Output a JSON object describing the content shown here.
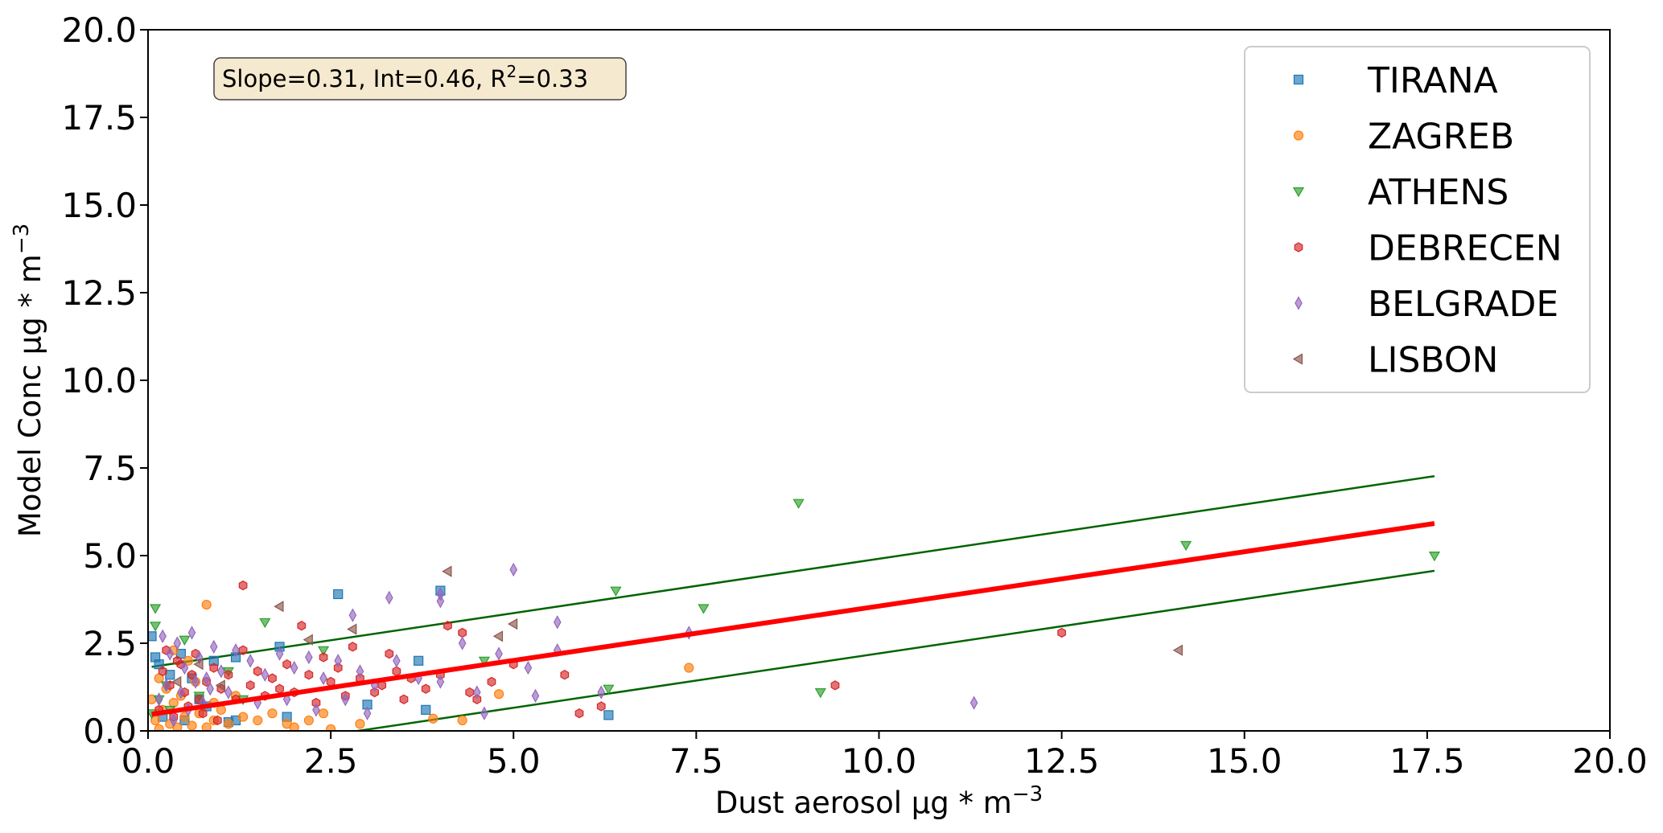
{
  "chart_data": {
    "type": "scatter",
    "xlabel": "Dust aerosol µg * m",
    "xlabel_exp": "−3",
    "ylabel": "Model Conc µg * m",
    "ylabel_exp": "−3",
    "xlim": [
      0,
      20
    ],
    "ylim": [
      0,
      20
    ],
    "xticks": [
      "0.0",
      "2.5",
      "5.0",
      "7.5",
      "10.0",
      "12.5",
      "15.0",
      "17.5",
      "20.0"
    ],
    "yticks": [
      "0.0",
      "2.5",
      "5.0",
      "7.5",
      "10.0",
      "12.5",
      "15.0",
      "17.5",
      "20.0"
    ],
    "grid": false,
    "legend_position": "top-right",
    "annotation": {
      "prefix": "Slope=0.31, Int=0.46, R",
      "sup": "2",
      "suffix": "=0.33",
      "background": "#f5e9cf"
    },
    "regression": {
      "slope": 0.31,
      "intercept": 0.46,
      "x_range": [
        0.05,
        17.6
      ],
      "color": "#ff0000",
      "band": 1.35,
      "band_color": "#006400"
    },
    "series": [
      {
        "name": "TIRANA",
        "marker": "square",
        "color": "#1f77b4",
        "points": [
          [
            0.05,
            2.7
          ],
          [
            0.1,
            2.1
          ],
          [
            0.15,
            1.9
          ],
          [
            0.3,
            1.6
          ],
          [
            0.45,
            2.2
          ],
          [
            0.6,
            1.5
          ],
          [
            0.8,
            0.7
          ],
          [
            1.2,
            0.3
          ],
          [
            0.9,
            2.0
          ],
          [
            1.8,
            2.4
          ],
          [
            1.2,
            2.1
          ],
          [
            2.6,
            3.9
          ],
          [
            4.0,
            4.0
          ],
          [
            3.7,
            2.0
          ],
          [
            3.0,
            0.75
          ],
          [
            3.8,
            0.6
          ],
          [
            6.3,
            0.45
          ],
          [
            1.9,
            0.4
          ],
          [
            1.1,
            0.25
          ],
          [
            0.2,
            0.4
          ],
          [
            0.5,
            0.3
          ],
          [
            0.7,
            0.9
          ]
        ]
      },
      {
        "name": "ZAGREB",
        "marker": "circle",
        "color": "#ff7f0e",
        "points": [
          [
            0.8,
            3.6
          ],
          [
            0.05,
            0.9
          ],
          [
            0.1,
            0.3
          ],
          [
            0.15,
            0.05
          ],
          [
            0.2,
            0.6
          ],
          [
            0.3,
            0.2
          ],
          [
            0.35,
            0.8
          ],
          [
            0.4,
            0.1
          ],
          [
            0.5,
            0.4
          ],
          [
            0.6,
            0.15
          ],
          [
            0.7,
            0.5
          ],
          [
            0.8,
            0.1
          ],
          [
            0.9,
            0.3
          ],
          [
            1.0,
            0.6
          ],
          [
            1.1,
            0.2
          ],
          [
            1.3,
            0.4
          ],
          [
            1.5,
            0.3
          ],
          [
            1.7,
            0.5
          ],
          [
            1.9,
            0.2
          ],
          [
            2.0,
            0.1
          ],
          [
            2.2,
            0.3
          ],
          [
            2.4,
            0.5
          ],
          [
            2.5,
            0.05
          ],
          [
            2.9,
            0.2
          ],
          [
            3.9,
            0.35
          ],
          [
            4.3,
            0.3
          ],
          [
            4.8,
            1.05
          ],
          [
            7.4,
            1.8
          ],
          [
            0.25,
            1.2
          ],
          [
            0.45,
            1.0
          ],
          [
            0.55,
            2.0
          ],
          [
            0.65,
            1.4
          ],
          [
            0.35,
            2.3
          ],
          [
            0.15,
            1.5
          ],
          [
            1.2,
            1.0
          ],
          [
            0.9,
            0.8
          ]
        ]
      },
      {
        "name": "ATHENS",
        "marker": "triangle_down",
        "color": "#2ca02c",
        "points": [
          [
            0.1,
            3.5
          ],
          [
            0.1,
            3.0
          ],
          [
            1.6,
            3.1
          ],
          [
            0.25,
            1.3
          ],
          [
            0.05,
            0.5
          ],
          [
            0.15,
            0.9
          ],
          [
            2.4,
            2.3
          ],
          [
            4.6,
            2.0
          ],
          [
            6.3,
            1.2
          ],
          [
            6.4,
            4.0
          ],
          [
            7.6,
            3.5
          ],
          [
            8.9,
            6.5
          ],
          [
            9.2,
            1.1
          ],
          [
            14.2,
            5.3
          ],
          [
            17.6,
            5.0
          ],
          [
            1.1,
            1.7
          ],
          [
            0.5,
            2.6
          ],
          [
            0.3,
            0.6
          ],
          [
            0.7,
            1.0
          ],
          [
            1.3,
            0.9
          ]
        ]
      },
      {
        "name": "DEBRECEN",
        "marker": "hexagon",
        "color": "#d62728",
        "points": [
          [
            1.3,
            4.15
          ],
          [
            2.1,
            3.0
          ],
          [
            2.8,
            2.4
          ],
          [
            3.1,
            1.1
          ],
          [
            3.6,
            1.5
          ],
          [
            4.1,
            3.0
          ],
          [
            4.3,
            2.8
          ],
          [
            5.0,
            1.9
          ],
          [
            5.7,
            1.6
          ],
          [
            5.9,
            0.5
          ],
          [
            6.2,
            0.7
          ],
          [
            9.4,
            1.3
          ],
          [
            12.5,
            2.8
          ],
          [
            0.2,
            1.7
          ],
          [
            0.3,
            1.3
          ],
          [
            0.4,
            2.0
          ],
          [
            0.5,
            1.1
          ],
          [
            0.6,
            1.6
          ],
          [
            0.7,
            0.9
          ],
          [
            0.8,
            1.4
          ],
          [
            0.9,
            1.8
          ],
          [
            1.0,
            1.2
          ],
          [
            1.1,
            1.6
          ],
          [
            1.2,
            0.9
          ],
          [
            1.4,
            1.3
          ],
          [
            1.5,
            1.7
          ],
          [
            1.6,
            1.0
          ],
          [
            1.7,
            1.5
          ],
          [
            1.8,
            1.2
          ],
          [
            1.9,
            1.9
          ],
          [
            2.0,
            1.1
          ],
          [
            2.2,
            1.6
          ],
          [
            2.3,
            0.8
          ],
          [
            2.5,
            1.4
          ],
          [
            2.6,
            1.8
          ],
          [
            2.7,
            1.0
          ],
          [
            2.9,
            1.5
          ],
          [
            3.2,
            1.3
          ],
          [
            3.4,
            1.7
          ],
          [
            3.5,
            0.9
          ],
          [
            3.8,
            1.2
          ],
          [
            4.0,
            1.6
          ],
          [
            4.4,
            1.1
          ],
          [
            4.7,
            1.4
          ],
          [
            4.5,
            0.9
          ],
          [
            3.3,
            2.2
          ],
          [
            2.4,
            2.1
          ],
          [
            1.3,
            2.3
          ],
          [
            0.15,
            0.6
          ],
          [
            0.35,
            0.4
          ],
          [
            0.55,
            0.7
          ],
          [
            0.75,
            0.5
          ],
          [
            0.95,
            0.3
          ],
          [
            0.25,
            2.3
          ],
          [
            0.45,
            1.9
          ],
          [
            0.65,
            2.2
          ]
        ]
      },
      {
        "name": "BELGRADE",
        "marker": "diamond",
        "color": "#9467bd",
        "points": [
          [
            5.0,
            4.6
          ],
          [
            3.3,
            3.8
          ],
          [
            2.8,
            3.3
          ],
          [
            4.0,
            3.9
          ],
          [
            5.6,
            3.1
          ],
          [
            4.3,
            2.5
          ],
          [
            5.2,
            1.8
          ],
          [
            5.3,
            1.0
          ],
          [
            6.2,
            1.1
          ],
          [
            7.4,
            2.8
          ],
          [
            11.3,
            0.8
          ],
          [
            0.2,
            2.7
          ],
          [
            0.3,
            2.2
          ],
          [
            0.4,
            2.5
          ],
          [
            0.5,
            1.8
          ],
          [
            0.6,
            2.8
          ],
          [
            0.7,
            2.1
          ],
          [
            0.8,
            1.5
          ],
          [
            0.9,
            2.4
          ],
          [
            1.0,
            1.7
          ],
          [
            1.2,
            2.3
          ],
          [
            1.4,
            2.0
          ],
          [
            1.6,
            1.6
          ],
          [
            1.8,
            2.2
          ],
          [
            2.0,
            1.8
          ],
          [
            2.2,
            2.1
          ],
          [
            2.4,
            1.5
          ],
          [
            2.6,
            2.0
          ],
          [
            2.9,
            1.7
          ],
          [
            3.1,
            1.3
          ],
          [
            3.4,
            2.0
          ],
          [
            3.7,
            1.5
          ],
          [
            4.0,
            1.4
          ],
          [
            4.5,
            1.1
          ],
          [
            4.6,
            0.5
          ],
          [
            3.0,
            0.5
          ],
          [
            2.7,
            0.9
          ],
          [
            2.3,
            0.6
          ],
          [
            1.9,
            0.9
          ],
          [
            1.5,
            0.8
          ],
          [
            1.1,
            1.1
          ],
          [
            0.15,
            0.9
          ],
          [
            0.25,
            1.3
          ],
          [
            0.45,
            1.1
          ],
          [
            0.55,
            0.6
          ],
          [
            0.65,
            1.4
          ],
          [
            0.75,
            0.8
          ],
          [
            0.85,
            1.2
          ],
          [
            0.35,
            0.3
          ],
          [
            5.6,
            2.3
          ],
          [
            4.8,
            2.2
          ],
          [
            4.0,
            3.7
          ]
        ]
      },
      {
        "name": "LISBON",
        "marker": "triangle_left",
        "color": "#8c564b",
        "points": [
          [
            1.8,
            3.55
          ],
          [
            4.1,
            4.55
          ],
          [
            5.0,
            3.05
          ],
          [
            4.8,
            2.7
          ],
          [
            2.8,
            2.9
          ],
          [
            14.1,
            2.3
          ],
          [
            2.2,
            2.6
          ],
          [
            0.4,
            1.4
          ],
          [
            0.7,
            1.9
          ],
          [
            1.0,
            1.3
          ]
        ]
      }
    ]
  }
}
